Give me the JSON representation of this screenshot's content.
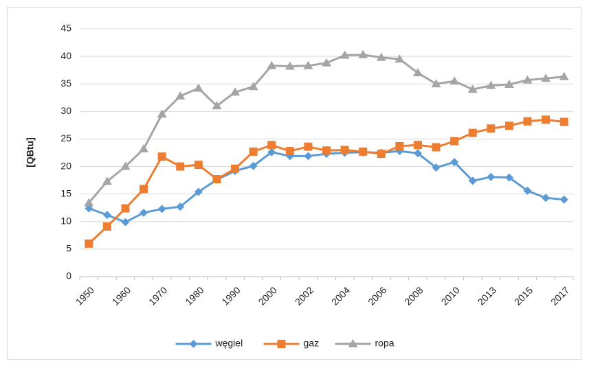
{
  "chart_data": {
    "type": "line",
    "y_label": "[QBtu]",
    "categories": [
      "1950",
      null,
      "1960",
      null,
      "1970",
      null,
      "1980",
      null,
      "1990",
      null,
      "2000",
      null,
      "2002",
      null,
      "2004",
      null,
      "2006",
      null,
      "2008",
      null,
      "2010",
      null,
      "2013",
      null,
      "2015",
      null,
      "2017"
    ],
    "series": [
      {
        "name": "węgiel",
        "color": "#5b9bd5",
        "marker": "diamond",
        "values": [
          12.4,
          11.2,
          9.9,
          11.6,
          12.3,
          12.7,
          15.4,
          17.6,
          19.2,
          20.1,
          22.6,
          21.9,
          21.9,
          22.3,
          22.5,
          22.6,
          22.5,
          22.8,
          22.4,
          19.8,
          20.8,
          17.4,
          18.1,
          18.0,
          15.6,
          14.3,
          14.0
        ]
      },
      {
        "name": "gaz",
        "color": "#ed7d31",
        "marker": "square",
        "values": [
          6.0,
          9.1,
          12.4,
          15.9,
          21.8,
          20.0,
          20.3,
          17.7,
          19.6,
          22.7,
          23.9,
          22.8,
          23.6,
          22.9,
          23.0,
          22.7,
          22.3,
          23.7,
          23.9,
          23.5,
          24.6,
          26.1,
          26.9,
          27.4,
          28.2,
          28.5,
          28.1
        ]
      },
      {
        "name": "ropa",
        "color": "#a5a5a5",
        "marker": "triangle",
        "values": [
          13.4,
          17.3,
          20.0,
          23.2,
          29.5,
          32.8,
          34.2,
          31.0,
          33.5,
          34.5,
          38.3,
          38.2,
          38.3,
          38.8,
          40.2,
          40.3,
          39.8,
          39.5,
          37.0,
          35.0,
          35.5,
          34.0,
          34.7,
          34.9,
          35.7,
          36.0,
          36.3
        ]
      }
    ],
    "ylim": [
      0,
      45
    ],
    "yticks": [
      0,
      5,
      10,
      15,
      20,
      25,
      30,
      35,
      40,
      45
    ],
    "grid": true,
    "legend": "bottom"
  }
}
